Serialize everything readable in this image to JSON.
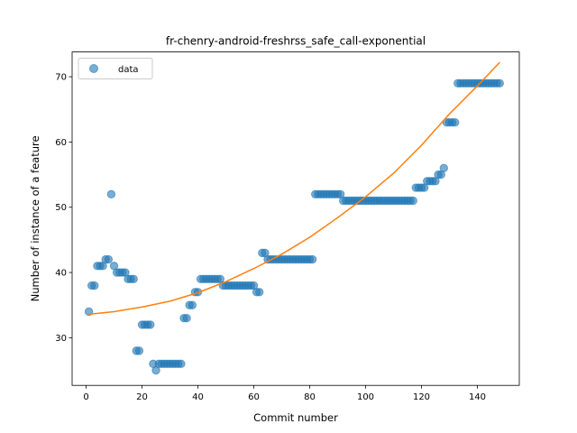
{
  "chart_data": {
    "type": "scatter",
    "title": "fr-chenry-android-freshrss_safe_call-exponential",
    "xlabel": "Commit number",
    "ylabel": "Number of instance of a feature",
    "xlim": [
      -5,
      155
    ],
    "ylim": [
      22.7,
      73.8
    ],
    "xticks": [
      0,
      20,
      40,
      60,
      80,
      100,
      120,
      140
    ],
    "yticks": [
      30,
      40,
      50,
      60,
      70
    ],
    "grid": false,
    "legend_position": "upper-left",
    "colors": {
      "data": "#1f77b4",
      "fit": "#ff7f0e"
    },
    "series": [
      {
        "name": "data",
        "kind": "scatter",
        "points": [
          [
            1,
            34
          ],
          [
            2,
            38
          ],
          [
            3,
            38
          ],
          [
            4,
            41
          ],
          [
            5,
            41
          ],
          [
            6,
            41
          ],
          [
            7,
            42
          ],
          [
            8,
            42
          ],
          [
            9,
            52
          ],
          [
            10,
            41
          ],
          [
            11,
            40
          ],
          [
            12,
            40
          ],
          [
            13,
            40
          ],
          [
            14,
            40
          ],
          [
            15,
            39
          ],
          [
            16,
            39
          ],
          [
            17,
            39
          ],
          [
            18,
            28
          ],
          [
            19,
            28
          ],
          [
            20,
            32
          ],
          [
            21,
            32
          ],
          [
            22,
            32
          ],
          [
            23,
            32
          ],
          [
            24,
            26
          ],
          [
            25,
            25
          ],
          [
            26,
            26
          ],
          [
            27,
            26
          ],
          [
            28,
            26
          ],
          [
            29,
            26
          ],
          [
            30,
            26
          ],
          [
            31,
            26
          ],
          [
            32,
            26
          ],
          [
            33,
            26
          ],
          [
            34,
            26
          ],
          [
            35,
            33
          ],
          [
            36,
            33
          ],
          [
            37,
            35
          ],
          [
            38,
            35
          ],
          [
            39,
            37
          ],
          [
            40,
            37
          ],
          [
            41,
            39
          ],
          [
            42,
            39
          ],
          [
            43,
            39
          ],
          [
            44,
            39
          ],
          [
            45,
            39
          ],
          [
            46,
            39
          ],
          [
            47,
            39
          ],
          [
            48,
            39
          ],
          [
            49,
            38
          ],
          [
            50,
            38
          ],
          [
            51,
            38
          ],
          [
            52,
            38
          ],
          [
            53,
            38
          ],
          [
            54,
            38
          ],
          [
            55,
            38
          ],
          [
            56,
            38
          ],
          [
            57,
            38
          ],
          [
            58,
            38
          ],
          [
            59,
            38
          ],
          [
            60,
            38
          ],
          [
            61,
            37
          ],
          [
            62,
            37
          ],
          [
            63,
            43
          ],
          [
            64,
            43
          ],
          [
            65,
            42
          ],
          [
            66,
            42
          ],
          [
            67,
            42
          ],
          [
            68,
            42
          ],
          [
            69,
            42
          ],
          [
            70,
            42
          ],
          [
            71,
            42
          ],
          [
            72,
            42
          ],
          [
            73,
            42
          ],
          [
            74,
            42
          ],
          [
            75,
            42
          ],
          [
            76,
            42
          ],
          [
            77,
            42
          ],
          [
            78,
            42
          ],
          [
            79,
            42
          ],
          [
            80,
            42
          ],
          [
            81,
            42
          ],
          [
            82,
            52
          ],
          [
            83,
            52
          ],
          [
            84,
            52
          ],
          [
            85,
            52
          ],
          [
            86,
            52
          ],
          [
            87,
            52
          ],
          [
            88,
            52
          ],
          [
            89,
            52
          ],
          [
            90,
            52
          ],
          [
            91,
            52
          ],
          [
            92,
            51
          ],
          [
            93,
            51
          ],
          [
            94,
            51
          ],
          [
            95,
            51
          ],
          [
            96,
            51
          ],
          [
            97,
            51
          ],
          [
            98,
            51
          ],
          [
            99,
            51
          ],
          [
            100,
            51
          ],
          [
            101,
            51
          ],
          [
            102,
            51
          ],
          [
            103,
            51
          ],
          [
            104,
            51
          ],
          [
            105,
            51
          ],
          [
            106,
            51
          ],
          [
            107,
            51
          ],
          [
            108,
            51
          ],
          [
            109,
            51
          ],
          [
            110,
            51
          ],
          [
            111,
            51
          ],
          [
            112,
            51
          ],
          [
            113,
            51
          ],
          [
            114,
            51
          ],
          [
            115,
            51
          ],
          [
            116,
            51
          ],
          [
            117,
            51
          ],
          [
            118,
            53
          ],
          [
            119,
            53
          ],
          [
            120,
            53
          ],
          [
            121,
            53
          ],
          [
            122,
            54
          ],
          [
            123,
            54
          ],
          [
            124,
            54
          ],
          [
            125,
            54
          ],
          [
            126,
            55
          ],
          [
            127,
            55
          ],
          [
            128,
            56
          ],
          [
            129,
            63
          ],
          [
            130,
            63
          ],
          [
            131,
            63
          ],
          [
            132,
            63
          ],
          [
            133,
            69
          ],
          [
            134,
            69
          ],
          [
            135,
            69
          ],
          [
            136,
            69
          ],
          [
            137,
            69
          ],
          [
            138,
            69
          ],
          [
            139,
            69
          ],
          [
            140,
            69
          ],
          [
            141,
            69
          ],
          [
            142,
            69
          ],
          [
            143,
            69
          ],
          [
            144,
            69
          ],
          [
            145,
            69
          ],
          [
            146,
            69
          ],
          [
            147,
            69
          ],
          [
            148,
            69
          ]
        ]
      },
      {
        "name": "",
        "kind": "line",
        "points": [
          [
            1,
            33.6
          ],
          [
            10,
            34.0
          ],
          [
            20,
            34.7
          ],
          [
            30,
            35.6
          ],
          [
            40,
            36.9
          ],
          [
            50,
            38.6
          ],
          [
            60,
            40.6
          ],
          [
            70,
            42.8
          ],
          [
            80,
            45.4
          ],
          [
            90,
            48.4
          ],
          [
            100,
            51.6
          ],
          [
            110,
            55.2
          ],
          [
            120,
            59.5
          ],
          [
            130,
            64.3
          ],
          [
            140,
            68.6
          ],
          [
            148,
            72.2
          ]
        ]
      }
    ],
    "legend": [
      {
        "label": "data",
        "marker": "circle"
      }
    ]
  }
}
